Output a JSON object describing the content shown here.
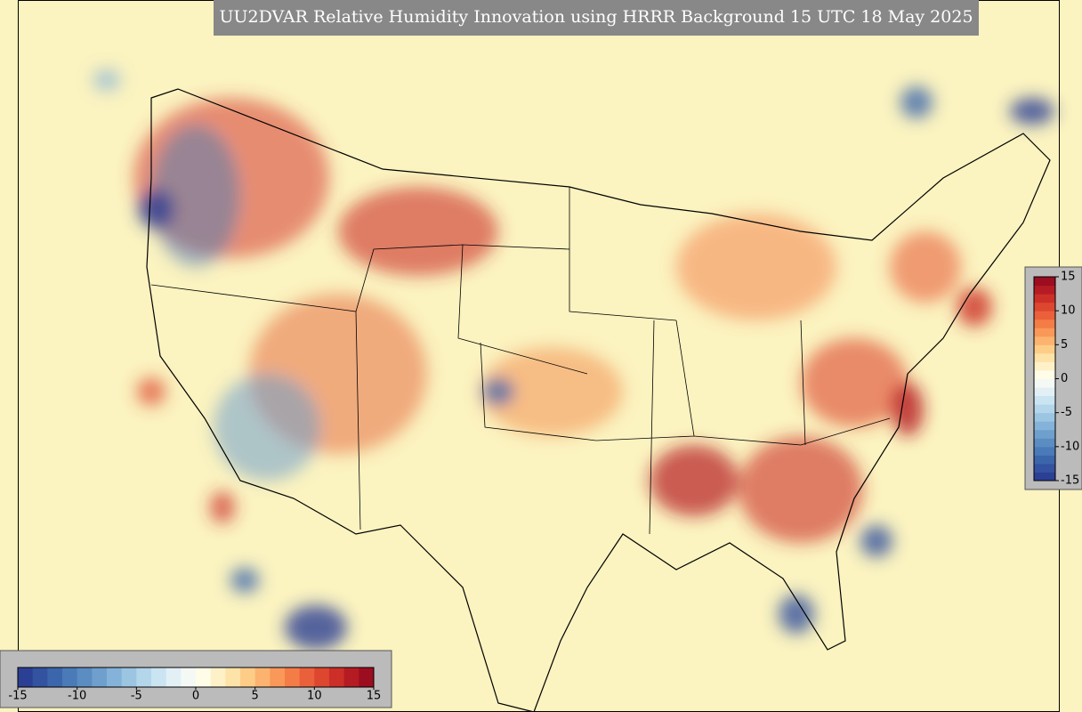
{
  "title": "UU2DVAR Relative Humidity Innovation using HRRR Background 15 UTC 18 May 2025",
  "colormap": [
    "#2b3f94",
    "#33529f",
    "#3c66ab",
    "#4a7ab8",
    "#5b8cc2",
    "#6f9fcd",
    "#85b2d8",
    "#9cc5e2",
    "#b4d6eb",
    "#cbe4f1",
    "#e2f0f6",
    "#f4f9f5",
    "#fffde8",
    "#fef1c8",
    "#fee3a8",
    "#fdcd88",
    "#fcb36f",
    "#f99858",
    "#f47c47",
    "#ea603a",
    "#dd462f",
    "#cc2f27",
    "#b51b22",
    "#9c0d20"
  ],
  "colorbar_right": {
    "ticks": [
      15,
      10,
      5,
      0,
      -5,
      -10,
      -15
    ]
  },
  "colorbar_bottom": {
    "ticks": [
      -15,
      -10,
      -5,
      0,
      5,
      10,
      15
    ]
  }
}
